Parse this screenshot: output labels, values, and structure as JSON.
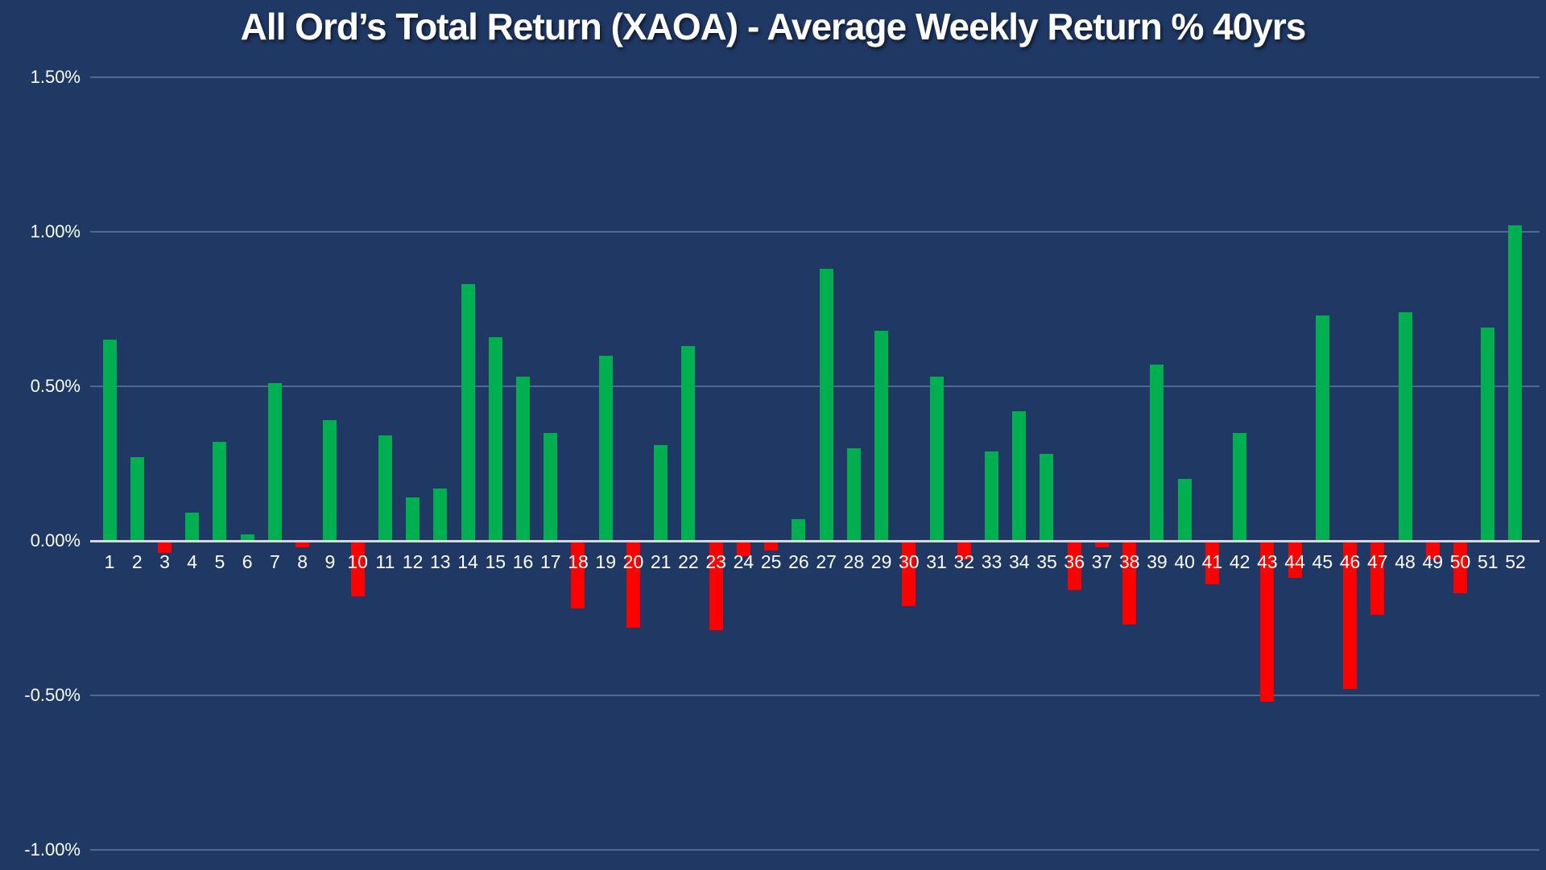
{
  "title": "All Ord’s Total Return (XAOA) - Average Weekly Return % 40yrs",
  "chart_data": {
    "type": "bar",
    "title": "All Ord’s Total Return (XAOA) - Average Weekly Return % 40yrs",
    "xlabel": "",
    "ylabel": "",
    "unit": "%",
    "categories": [
      "1",
      "2",
      "3",
      "4",
      "5",
      "6",
      "7",
      "8",
      "9",
      "10",
      "11",
      "12",
      "13",
      "14",
      "15",
      "16",
      "17",
      "18",
      "19",
      "20",
      "21",
      "22",
      "23",
      "24",
      "25",
      "26",
      "27",
      "28",
      "29",
      "30",
      "31",
      "32",
      "33",
      "34",
      "35",
      "36",
      "37",
      "38",
      "39",
      "40",
      "41",
      "42",
      "43",
      "44",
      "45",
      "46",
      "47",
      "48",
      "49",
      "50",
      "51",
      "52"
    ],
    "values": [
      0.65,
      0.27,
      -0.04,
      0.09,
      0.32,
      0.02,
      0.51,
      -0.02,
      0.39,
      -0.18,
      0.34,
      0.14,
      0.17,
      0.83,
      0.66,
      0.53,
      0.35,
      -0.22,
      0.6,
      -0.28,
      0.31,
      0.63,
      -0.29,
      -0.05,
      -0.03,
      0.07,
      0.88,
      0.3,
      0.68,
      -0.21,
      0.53,
      -0.06,
      0.29,
      0.42,
      0.28,
      -0.16,
      -0.02,
      -0.27,
      0.57,
      0.2,
      -0.14,
      0.35,
      -0.52,
      -0.12,
      0.73,
      -0.48,
      -0.24,
      0.74,
      -0.06,
      -0.17,
      0.69,
      1.02
    ],
    "ylim": [
      -1.0,
      1.5
    ],
    "ytick_values": [
      1.5,
      1.0,
      0.5,
      0.0,
      -0.5,
      -1.0
    ],
    "ytick_labels": [
      "1.50%",
      "1.00%",
      "0.50%",
      "0.00%",
      "-0.50%",
      "-1.00%"
    ],
    "grid": true,
    "legend": "none",
    "colors": {
      "background": "#1F3864",
      "positive": "#00B050",
      "negative": "#FF0000",
      "gridline": "rgba(217,226,243,0.28)",
      "axis_line": "#D9D9D9",
      "text": "#FFFFFF"
    }
  }
}
